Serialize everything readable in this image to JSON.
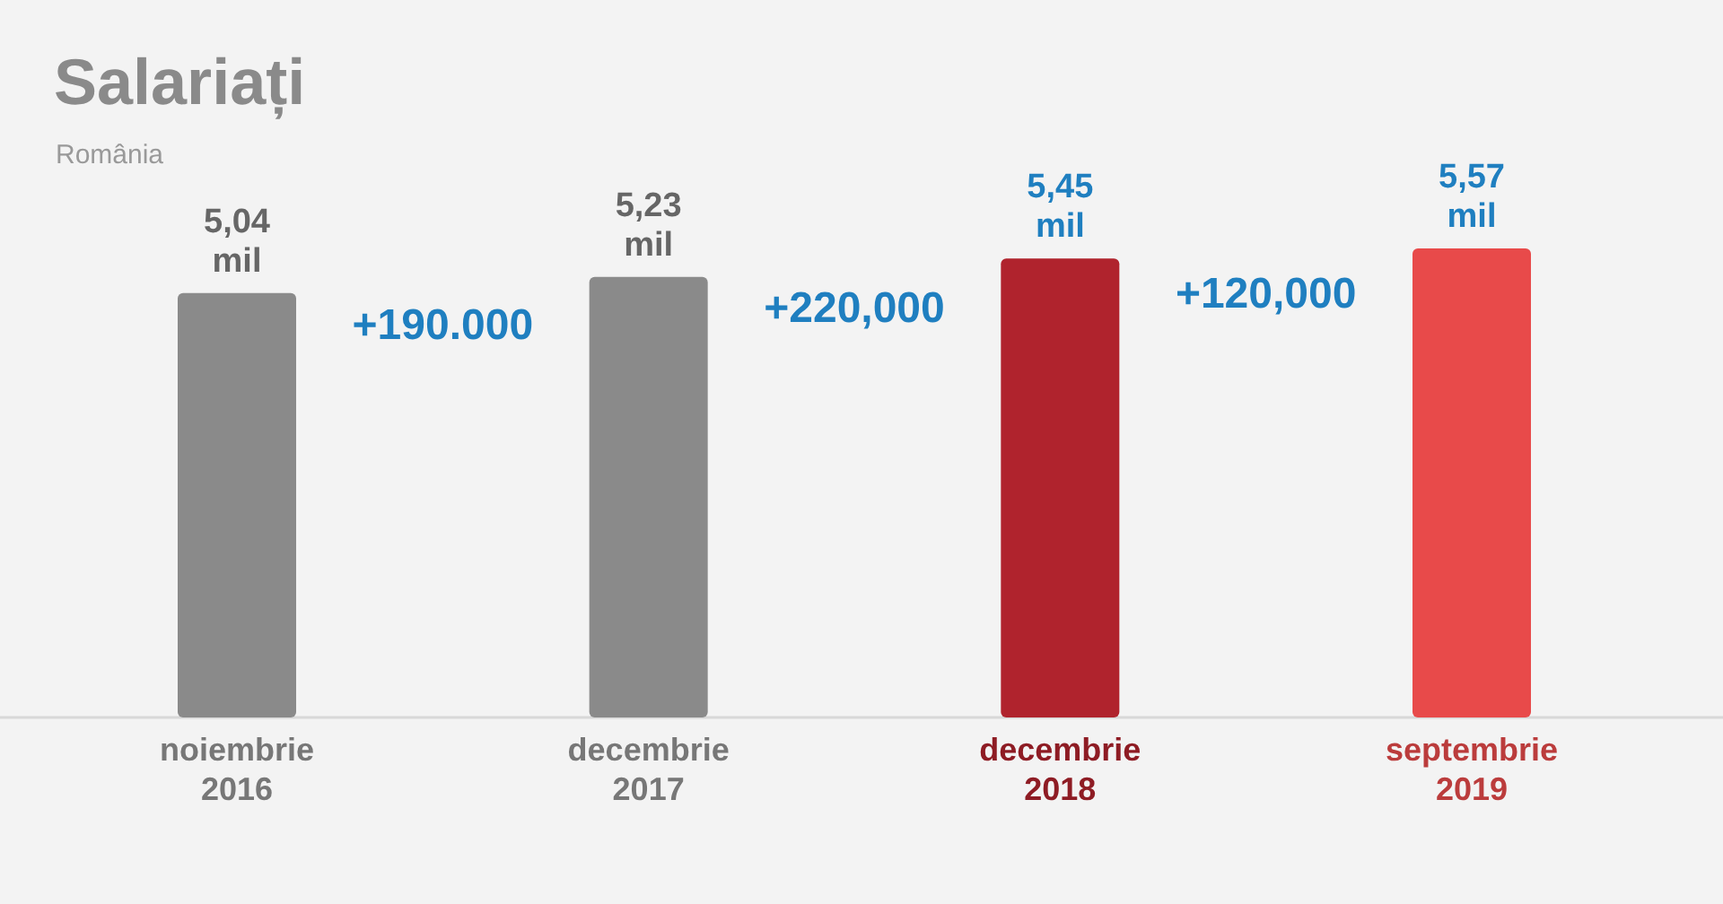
{
  "chart_data": {
    "type": "bar",
    "title": "Salariați",
    "subtitle": "România",
    "categories": [
      "noiembrie 2016",
      "decembrie 2017",
      "decembrie 2018",
      "septembrie 2019"
    ],
    "values": [
      5.04,
      5.23,
      5.45,
      5.57
    ],
    "colors": [
      "#8a8a8a",
      "#8a8a8a",
      "#b0232d",
      "#e84a4a"
    ],
    "value_labels": [
      "5,04 mil",
      "5,23 mil",
      "5,45 mil",
      "5,57 mil"
    ],
    "annotations": [
      "+190.000",
      "+220,000",
      "+120,000"
    ]
  }
}
